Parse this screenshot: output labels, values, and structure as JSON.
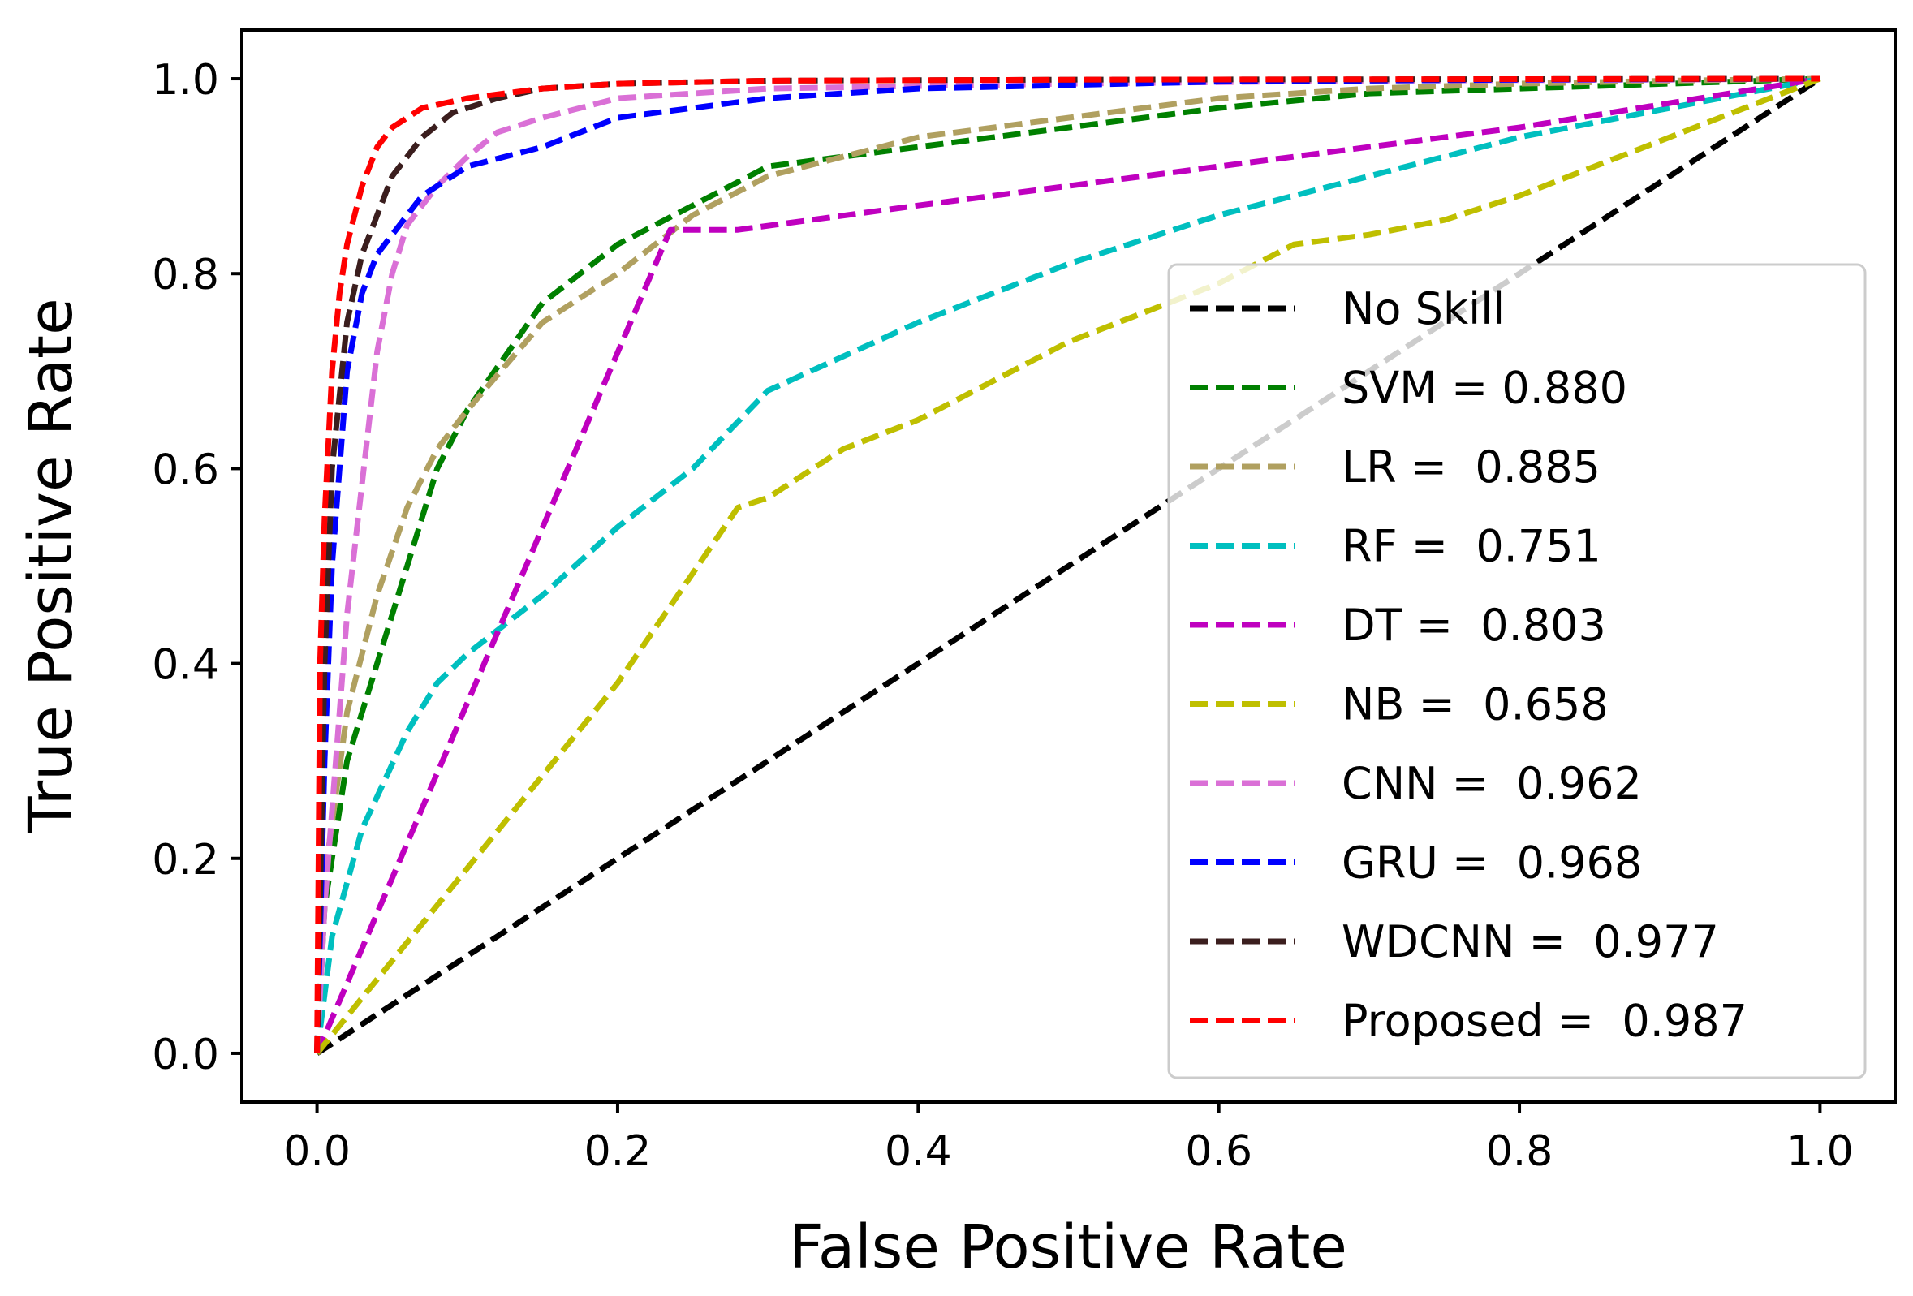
{
  "chart_data": {
    "type": "line",
    "title": "",
    "xlabel": "False Positive Rate",
    "ylabel": "True Positive Rate",
    "xlim": [
      -0.05,
      1.05
    ],
    "ylim": [
      -0.05,
      1.05
    ],
    "xticks": [
      0.0,
      0.2,
      0.4,
      0.6,
      0.8,
      1.0
    ],
    "xtick_labels": [
      "0.0",
      "0.2",
      "0.4",
      "0.6",
      "0.8",
      "1.0"
    ],
    "yticks": [
      0.0,
      0.2,
      0.4,
      0.6,
      0.8,
      1.0
    ],
    "ytick_labels": [
      "0.0",
      "0.2",
      "0.4",
      "0.6",
      "0.8",
      "1.0"
    ],
    "grid": false,
    "legend_position": "lower-right",
    "series": [
      {
        "name": "No Skill",
        "color": "#000000",
        "x": [
          0,
          1
        ],
        "y": [
          0,
          1
        ]
      },
      {
        "name": "SVM = 0.880",
        "color": "#008000",
        "x": [
          0,
          0.005,
          0.02,
          0.05,
          0.08,
          0.1,
          0.15,
          0.2,
          0.25,
          0.3,
          0.4,
          0.5,
          0.6,
          0.7,
          0.8,
          0.9,
          1.0
        ],
        "y": [
          0,
          0.15,
          0.3,
          0.45,
          0.6,
          0.66,
          0.77,
          0.83,
          0.87,
          0.91,
          0.93,
          0.95,
          0.97,
          0.985,
          0.99,
          0.995,
          1.0
        ]
      },
      {
        "name": "LR =  0.885",
        "color": "#B0A060",
        "x": [
          0,
          0.005,
          0.02,
          0.04,
          0.06,
          0.08,
          0.1,
          0.15,
          0.2,
          0.25,
          0.3,
          0.4,
          0.5,
          0.6,
          0.7,
          0.8,
          0.9,
          1.0
        ],
        "y": [
          0,
          0.18,
          0.35,
          0.47,
          0.56,
          0.62,
          0.66,
          0.75,
          0.8,
          0.86,
          0.9,
          0.94,
          0.96,
          0.98,
          0.99,
          0.995,
          0.998,
          1.0
        ]
      },
      {
        "name": "RF =  0.751",
        "color": "#00BFBF",
        "x": [
          0,
          0.01,
          0.03,
          0.06,
          0.08,
          0.1,
          0.15,
          0.2,
          0.25,
          0.3,
          0.4,
          0.5,
          0.6,
          0.7,
          0.8,
          0.9,
          1.0
        ],
        "y": [
          0,
          0.12,
          0.23,
          0.33,
          0.38,
          0.41,
          0.47,
          0.54,
          0.6,
          0.68,
          0.75,
          0.81,
          0.86,
          0.9,
          0.94,
          0.97,
          1.0
        ]
      },
      {
        "name": "DT =  0.803",
        "color": "#BF00BF",
        "x": [
          0,
          0.235,
          0.28,
          0.4,
          0.6,
          0.8,
          1.0
        ],
        "y": [
          0,
          0.845,
          0.845,
          0.87,
          0.91,
          0.95,
          1.0
        ]
      },
      {
        "name": "NB =  0.658",
        "color": "#BFBF00",
        "x": [
          0,
          0.1,
          0.2,
          0.28,
          0.3,
          0.35,
          0.4,
          0.5,
          0.6,
          0.65,
          0.7,
          0.75,
          0.8,
          0.85,
          0.9,
          1.0
        ],
        "y": [
          0,
          0.19,
          0.38,
          0.56,
          0.57,
          0.62,
          0.65,
          0.73,
          0.79,
          0.83,
          0.84,
          0.855,
          0.88,
          0.91,
          0.94,
          1.0
        ]
      },
      {
        "name": "CNN =  0.962",
        "color": "#DA70D6",
        "x": [
          0,
          0.005,
          0.02,
          0.04,
          0.05,
          0.06,
          0.08,
          0.1,
          0.12,
          0.15,
          0.2,
          0.3,
          0.5,
          0.7,
          0.9,
          1.0
        ],
        "y": [
          0,
          0.15,
          0.45,
          0.72,
          0.8,
          0.85,
          0.89,
          0.92,
          0.945,
          0.96,
          0.98,
          0.99,
          0.995,
          0.998,
          0.999,
          1.0
        ]
      },
      {
        "name": "GRU =  0.968",
        "color": "#0000FF",
        "x": [
          0,
          0.005,
          0.01,
          0.02,
          0.03,
          0.04,
          0.05,
          0.07,
          0.1,
          0.15,
          0.2,
          0.3,
          0.4,
          0.6,
          0.8,
          1.0
        ],
        "y": [
          0,
          0.3,
          0.5,
          0.7,
          0.78,
          0.82,
          0.84,
          0.88,
          0.91,
          0.93,
          0.96,
          0.98,
          0.99,
          0.997,
          0.999,
          1.0
        ]
      },
      {
        "name": "WDCNN =  0.977",
        "color": "#3B1E1E",
        "x": [
          0,
          0.005,
          0.01,
          0.02,
          0.03,
          0.04,
          0.05,
          0.07,
          0.09,
          0.12,
          0.15,
          0.2,
          0.3,
          0.5,
          1.0
        ],
        "y": [
          0,
          0.4,
          0.6,
          0.75,
          0.82,
          0.86,
          0.9,
          0.94,
          0.965,
          0.98,
          0.99,
          0.995,
          0.998,
          0.999,
          1.0
        ]
      },
      {
        "name": "Proposed =  0.987",
        "color": "#FF0000",
        "x": [
          0,
          0.002,
          0.005,
          0.01,
          0.015,
          0.02,
          0.03,
          0.04,
          0.05,
          0.07,
          0.1,
          0.15,
          0.2,
          0.3,
          0.5,
          1.0
        ],
        "y": [
          0,
          0.4,
          0.55,
          0.7,
          0.78,
          0.83,
          0.89,
          0.93,
          0.95,
          0.97,
          0.98,
          0.99,
          0.995,
          0.998,
          0.999,
          1.0
        ]
      }
    ]
  }
}
